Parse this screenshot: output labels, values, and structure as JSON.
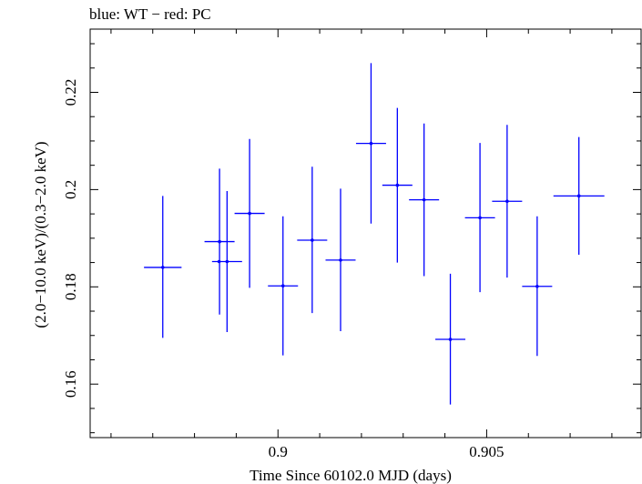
{
  "chart_data": {
    "type": "scatter",
    "title": "blue: WT − red: PC",
    "xlabel": "Time Since 60102.0 MJD (days)",
    "ylabel": "(2.0−10.0 keV)/(0.3−2.0 keV)",
    "xlim": [
      0.8955,
      0.9087
    ],
    "ylim": [
      0.149,
      0.233
    ],
    "x_ticks": [
      0.9,
      0.905
    ],
    "x_tick_labels": [
      "0.9",
      "0.905"
    ],
    "y_ticks": [
      0.16,
      0.18,
      0.2,
      0.22
    ],
    "y_tick_labels": [
      "0.16",
      "0.18",
      "0.2",
      "0.22"
    ],
    "grid": false,
    "series": [
      {
        "color": "#0000ff",
        "points": [
          {
            "x": 0.89724,
            "xerr": 0.00045,
            "y": 0.184,
            "yerr_low": 0.0145,
            "yerr_high": 0.0147
          },
          {
            "x": 0.89878,
            "xerr": 0.00036,
            "y": 0.1852,
            "yerr_low": 0.0145,
            "yerr_high": 0.0145
          },
          {
            "x": 0.89859,
            "xerr": 0.0,
            "y": 0.1852,
            "yerr_low": 0.0,
            "yerr_high": 0.0
          },
          {
            "x": 0.8986,
            "xerr": 0.00036,
            "y": 0.1893,
            "yerr_low": 0.015,
            "yerr_high": 0.015
          },
          {
            "x": 0.89932,
            "xerr": 0.00036,
            "y": 0.1951,
            "yerr_low": 0.0153,
            "yerr_high": 0.0153
          },
          {
            "x": 0.90012,
            "xerr": 0.00036,
            "y": 0.1802,
            "yerr_low": 0.0143,
            "yerr_high": 0.0143
          },
          {
            "x": 0.90082,
            "xerr": 0.00036,
            "y": 0.1896,
            "yerr_low": 0.015,
            "yerr_high": 0.0151
          },
          {
            "x": 0.9015,
            "xerr": 0.00036,
            "y": 0.1855,
            "yerr_low": 0.0146,
            "yerr_high": 0.0147
          },
          {
            "x": 0.90223,
            "xerr": 0.00036,
            "y": 0.2095,
            "yerr_low": 0.0165,
            "yerr_high": 0.0165
          },
          {
            "x": 0.90286,
            "xerr": 0.00036,
            "y": 0.2009,
            "yerr_low": 0.0159,
            "yerr_high": 0.0159
          },
          {
            "x": 0.9035,
            "xerr": 0.00036,
            "y": 0.1979,
            "yerr_low": 0.0157,
            "yerr_high": 0.0157
          },
          {
            "x": 0.90413,
            "xerr": 0.00036,
            "y": 0.1692,
            "yerr_low": 0.0134,
            "yerr_high": 0.0135
          },
          {
            "x": 0.90484,
            "xerr": 0.00036,
            "y": 0.1942,
            "yerr_low": 0.0153,
            "yerr_high": 0.0154
          },
          {
            "x": 0.90549,
            "xerr": 0.00036,
            "y": 0.1976,
            "yerr_low": 0.0157,
            "yerr_high": 0.0157
          },
          {
            "x": 0.90621,
            "xerr": 0.00036,
            "y": 0.1801,
            "yerr_low": 0.0143,
            "yerr_high": 0.0144
          },
          {
            "x": 0.90721,
            "xerr": 0.00061,
            "y": 0.1987,
            "yerr_low": 0.0121,
            "yerr_high": 0.0121
          }
        ]
      }
    ]
  }
}
